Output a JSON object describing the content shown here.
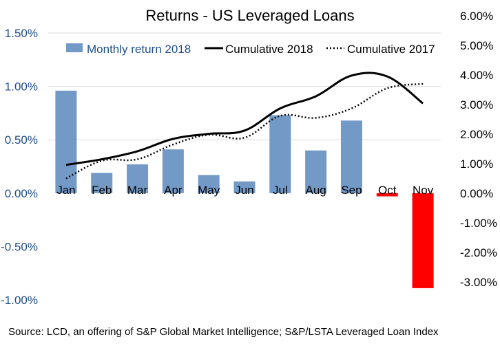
{
  "chart_data": {
    "type": "bar+line",
    "title": "Returns - US Leveraged Loans",
    "categories": [
      "Jan",
      "Feb",
      "Mar",
      "Apr",
      "May",
      "Jun",
      "Jul",
      "Aug",
      "Sep",
      "Oct",
      "Nov"
    ],
    "y_left": {
      "ticks": [
        "-1.00%",
        "-0.50%",
        "0.00%",
        "0.50%",
        "1.00%",
        "1.50%"
      ],
      "tick_values": [
        -1.0,
        -0.5,
        0.0,
        0.5,
        1.0,
        1.5
      ],
      "ylim": [
        -1.0,
        1.5
      ],
      "color": "#1f4e8c"
    },
    "y_right": {
      "ticks": [
        "-3.00%",
        "-2.00%",
        "-1.00%",
        "0.00%",
        "1.00%",
        "2.00%",
        "3.00%",
        "4.00%",
        "5.00%",
        "6.00%"
      ],
      "tick_values": [
        -3,
        -2,
        -1,
        0,
        1,
        2,
        3,
        4,
        5,
        6
      ],
      "ylim": [
        -3.25,
        6.25
      ]
    },
    "series": [
      {
        "name": "Monthly return 2018",
        "type": "bar",
        "axis": "left",
        "values": [
          0.96,
          0.19,
          0.27,
          0.41,
          0.17,
          0.11,
          0.73,
          0.4,
          0.68,
          -0.03,
          -0.89
        ],
        "color": "#7399c6",
        "negative_color": "#ff0000"
      },
      {
        "name": "Cumulative 2018",
        "type": "line",
        "axis": "right",
        "style": "solid",
        "values": [
          0.96,
          1.15,
          1.42,
          1.84,
          2.01,
          2.12,
          2.87,
          3.28,
          3.98,
          3.95,
          3.04
        ],
        "color": "#000000"
      },
      {
        "name": "Cumulative 2017",
        "type": "line",
        "axis": "right",
        "style": "dotted",
        "values": [
          0.5,
          1.1,
          1.15,
          1.65,
          1.98,
          1.88,
          2.62,
          2.55,
          2.87,
          3.55,
          3.7
        ],
        "color": "#000000"
      }
    ],
    "legend": {
      "placement": "top"
    },
    "grid": {
      "horizontal": true,
      "vertical": false,
      "color": "#d9d9d9"
    }
  },
  "source_note": "Source: LCD, an offering of S&P Global Market Intelligence; S&P/LSTA Leveraged Loan Index"
}
